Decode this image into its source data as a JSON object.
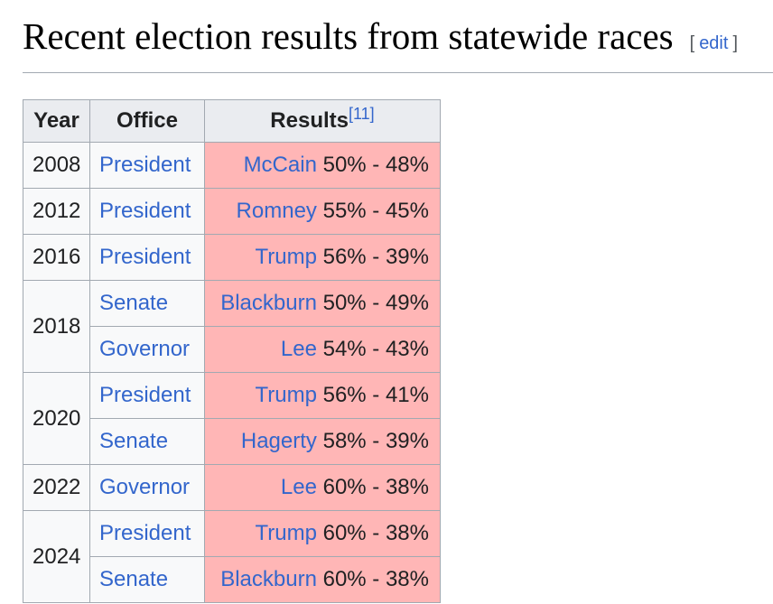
{
  "section": {
    "title": "Recent election results from statewide races",
    "edit": {
      "open": "[",
      "label": "edit",
      "close": "]"
    }
  },
  "table": {
    "headers": {
      "year": "Year",
      "office": "Office",
      "results": "Results"
    },
    "results_footnote": "[11]",
    "rows": [
      {
        "year": "2008",
        "office": "President",
        "candidate": "McCain",
        "score": "50% - 48%"
      },
      {
        "year": "2012",
        "office": "President",
        "candidate": "Romney",
        "score": "55% - 45%"
      },
      {
        "year": "2016",
        "office": "President",
        "candidate": "Trump",
        "score": "56% - 39%"
      },
      {
        "year": "2018",
        "office": "Senate",
        "candidate": "Blackburn",
        "score": "50% - 49%"
      },
      {
        "office": "Governor",
        "candidate": "Lee",
        "score": "54% - 43%"
      },
      {
        "year": "2020",
        "office": "President",
        "candidate": "Trump",
        "score": "56% - 41%"
      },
      {
        "office": "Senate",
        "candidate": "Hagerty",
        "score": "58% - 39%"
      },
      {
        "year": "2022",
        "office": "Governor",
        "candidate": "Lee",
        "score": "60% - 38%"
      },
      {
        "year": "2024",
        "office": "President",
        "candidate": "Trump",
        "score": "60% - 38%"
      },
      {
        "office": "Senate",
        "candidate": "Blackburn",
        "score": "60% - 38%"
      }
    ],
    "colors": {
      "republican_shading": "#ffb6b6",
      "header_bg": "#eaecf0",
      "cell_bg": "#f8f9fa",
      "border": "#a2a9b1",
      "link": "#3366cc"
    }
  }
}
